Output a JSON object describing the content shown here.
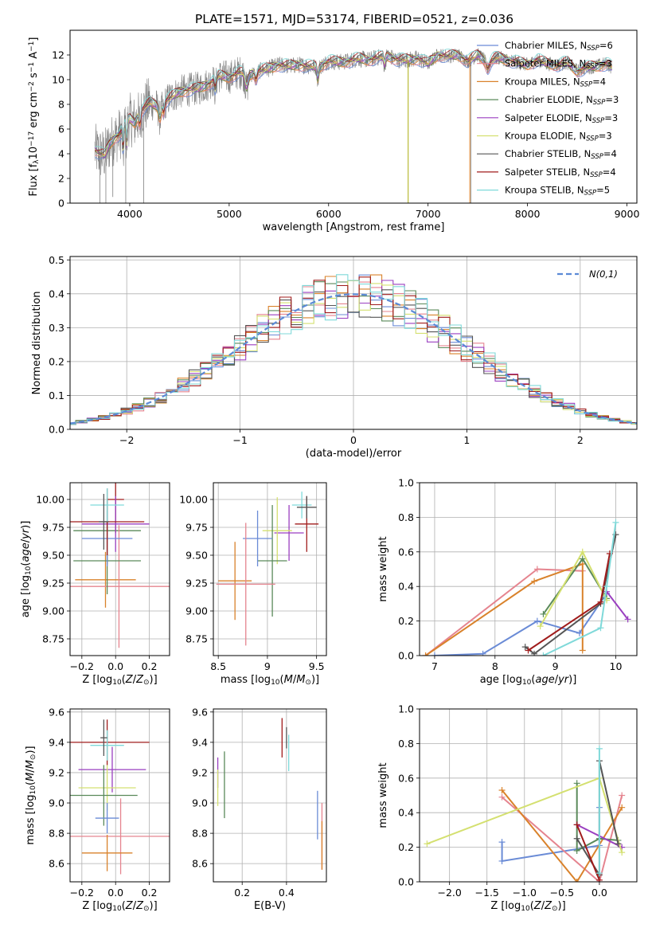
{
  "title": "PLATE=1571, MJD=53174, FIBERID=0521, z=0.036",
  "chart_data": [
    {
      "id": "spectrum",
      "type": "line",
      "xlabel": "wavelength [Angstrom, rest frame]",
      "ylabel": "Flux [f_λ 10^-17 erg cm^-2 s^-1 A^-1]",
      "xlim": [
        3400,
        9100
      ],
      "ylim": [
        0,
        14
      ],
      "xticks": [
        4000,
        5000,
        6000,
        7000,
        8000,
        9000
      ],
      "yticks": [
        0,
        2,
        4,
        6,
        8,
        10,
        12
      ],
      "grid": false,
      "legend_position": "right",
      "observed_color": "#808080",
      "continuum": [
        [
          3650,
          4.3
        ],
        [
          3700,
          4.0
        ],
        [
          3750,
          3.9
        ],
        [
          3800,
          4.8
        ],
        [
          3850,
          5.3
        ],
        [
          3900,
          5.6
        ],
        [
          3950,
          6.3
        ],
        [
          4000,
          6.8
        ],
        [
          4050,
          6.5
        ],
        [
          4100,
          7.3
        ],
        [
          4150,
          7.8
        ],
        [
          4200,
          8.1
        ],
        [
          4300,
          7.8
        ],
        [
          4400,
          8.5
        ],
        [
          4500,
          9.0
        ],
        [
          4600,
          9.2
        ],
        [
          4700,
          9.3
        ],
        [
          4800,
          9.7
        ],
        [
          4900,
          10.3
        ],
        [
          5000,
          10.2
        ],
        [
          5100,
          10.6
        ],
        [
          5200,
          10.4
        ],
        [
          5300,
          10.7
        ],
        [
          5400,
          10.9
        ],
        [
          5500,
          11.2
        ],
        [
          5600,
          11.1
        ],
        [
          5700,
          11.2
        ],
        [
          5800,
          11.1
        ],
        [
          5900,
          11.0
        ],
        [
          6000,
          11.5
        ],
        [
          6100,
          11.4
        ],
        [
          6200,
          11.5
        ],
        [
          6300,
          11.7
        ],
        [
          6400,
          11.6
        ],
        [
          6500,
          11.8
        ],
        [
          6600,
          11.9
        ],
        [
          6700,
          11.6
        ],
        [
          6800,
          11.6
        ],
        [
          6900,
          11.7
        ],
        [
          7000,
          11.3
        ],
        [
          7100,
          12.0
        ],
        [
          7200,
          11.9
        ],
        [
          7300,
          12.0
        ],
        [
          7400,
          11.5
        ],
        [
          7500,
          12.0
        ],
        [
          7600,
          11.5
        ],
        [
          7700,
          11.8
        ],
        [
          7800,
          11.6
        ],
        [
          7900,
          11.4
        ],
        [
          8000,
          11.2
        ],
        [
          8100,
          11.6
        ],
        [
          8200,
          11.3
        ],
        [
          8300,
          11.2
        ],
        [
          8400,
          11.4
        ],
        [
          8500,
          10.7
        ],
        [
          8600,
          11.0
        ],
        [
          8700,
          11.1
        ],
        [
          8800,
          11.3
        ],
        [
          8850,
          11.0
        ]
      ],
      "models": [
        {
          "name": "Chabrier MILES, N_SSP=6",
          "label_main": "Chabrier MILES, N",
          "label_sub": "SSP",
          "label_val": "=6",
          "color": "#6a8bd6"
        },
        {
          "name": "Salpeter MILES, N_SSP=3",
          "label_main": "Salpeter MILES, N",
          "label_sub": "SSP",
          "label_val": "=3",
          "color": "#e5848f"
        },
        {
          "name": "Kroupa MILES, N_SSP=4",
          "label_main": "Kroupa MILES, N",
          "label_sub": "SSP",
          "label_val": "=4",
          "color": "#d9822b"
        },
        {
          "name": "Chabrier ELODIE, N_SSP=3",
          "label_main": "Chabrier ELODIE, N",
          "label_sub": "SSP",
          "label_val": "=3",
          "color": "#5a8a5a"
        },
        {
          "name": "Salpeter ELODIE, N_SSP=3",
          "label_main": "Salpeter ELODIE, N",
          "label_sub": "SSP",
          "label_val": "=3",
          "color": "#9a3fc0"
        },
        {
          "name": "Kroupa ELODIE, N_SSP=3",
          "label_main": "Kroupa ELODIE, N",
          "label_sub": "SSP",
          "label_val": "=3",
          "color": "#d4e070"
        },
        {
          "name": "Chabrier STELIB, N_SSP=4",
          "label_main": "Chabrier STELIB, N",
          "label_sub": "SSP",
          "label_val": "=4",
          "color": "#555555"
        },
        {
          "name": "Salpeter STELIB, N_SSP=4",
          "label_main": "Salpeter STELIB, N",
          "label_sub": "SSP",
          "label_val": "=4",
          "color": "#a01c1c"
        },
        {
          "name": "Kroupa STELIB, N_SSP=5",
          "label_main": "Kroupa STELIB, N",
          "label_sub": "SSP",
          "label_val": "=5",
          "color": "#7fd9d9"
        }
      ]
    },
    {
      "id": "residuals",
      "type": "histogram",
      "xlabel": "(data-model)/error",
      "ylabel": "Normed distribution",
      "xlim": [
        -2.5,
        2.5
      ],
      "ylim": [
        0,
        0.51
      ],
      "xticks": [
        -2,
        -1,
        0,
        1,
        2
      ],
      "yticks": [
        0.0,
        0.1,
        0.2,
        0.3,
        0.4,
        0.5
      ],
      "grid": true,
      "legend_position": "top-right",
      "reference": {
        "name": "N(0,1)",
        "color": "#5b8ad6"
      }
    },
    {
      "id": "age_vs_Z",
      "type": "scatter",
      "xlabel": "Z [log10(Z/Z⊙)]",
      "ylabel": "age  [log10(age/yr)]",
      "xlim": [
        -0.27,
        0.32
      ],
      "ylim": [
        8.6,
        10.15
      ],
      "xticks": [
        -0.2,
        0.0,
        0.2
      ],
      "xtick_labels": [
        "−0.2",
        "0.0",
        "0.2"
      ],
      "yticks": [
        8.75,
        9.0,
        9.25,
        9.5,
        9.75,
        10.0
      ],
      "grid": true,
      "points": [
        {
          "x": -0.05,
          "y": 9.72,
          "xerr": 0.2,
          "yerr": 0.3,
          "model": 3
        },
        {
          "x": 0.0,
          "y": 10.0,
          "xerr": 0.05,
          "yerr": 0.3,
          "model": 7
        },
        {
          "x": -0.06,
          "y": 9.28,
          "xerr": 0.18,
          "yerr": 0.25,
          "model": 2
        },
        {
          "x": 0.02,
          "y": 9.22,
          "xerr": 0.3,
          "yerr": 0.55,
          "model": 1
        },
        {
          "x": -0.05,
          "y": 9.45,
          "xerr": 0.2,
          "yerr": 0.3,
          "model": 3
        },
        {
          "x": 0.0,
          "y": 9.78,
          "xerr": 0.2,
          "yerr": 0.25,
          "model": 4
        },
        {
          "x": -0.05,
          "y": 9.65,
          "xerr": 0.15,
          "yerr": 0.25,
          "model": 0
        },
        {
          "x": -0.05,
          "y": 9.8,
          "xerr": 0.22,
          "yerr": 0.3,
          "model": 7
        },
        {
          "x": -0.05,
          "y": 9.95,
          "xerr": 0.1,
          "yerr": 0.15,
          "model": 8
        },
        {
          "x": -0.07,
          "y": 9.8,
          "xerr": 0.03,
          "yerr": 0.25,
          "model": 6
        }
      ]
    },
    {
      "id": "age_vs_mass",
      "type": "scatter",
      "xlabel": "mass [log10(M/M⊙)]",
      "xlim": [
        8.45,
        9.6
      ],
      "ylim": [
        8.6,
        10.15
      ],
      "xticks": [
        8.5,
        9.0,
        9.5
      ],
      "yticks": [
        8.75,
        9.0,
        9.25,
        9.5,
        9.75,
        10.0
      ],
      "grid": true,
      "points": [
        {
          "x": 9.35,
          "y": 9.95,
          "xerr": 0.1,
          "yerr": 0.12,
          "model": 8
        },
        {
          "x": 9.4,
          "y": 9.78,
          "xerr": 0.12,
          "yerr": 0.25,
          "model": 7
        },
        {
          "x": 9.4,
          "y": 9.93,
          "xerr": 0.1,
          "yerr": 0.1,
          "model": 6
        },
        {
          "x": 9.22,
          "y": 9.7,
          "xerr": 0.15,
          "yerr": 0.25,
          "model": 4
        },
        {
          "x": 9.1,
          "y": 9.72,
          "xerr": 0.15,
          "yerr": 0.3,
          "model": 5
        },
        {
          "x": 9.05,
          "y": 9.45,
          "xerr": 0.15,
          "yerr": 0.5,
          "model": 3
        },
        {
          "x": 8.9,
          "y": 9.65,
          "xerr": 0.15,
          "yerr": 0.25,
          "model": 0
        },
        {
          "x": 8.67,
          "y": 9.27,
          "xerr": 0.17,
          "yerr": 0.35,
          "model": 2
        },
        {
          "x": 8.78,
          "y": 9.24,
          "xerr": 0.3,
          "yerr": 0.55,
          "model": 1
        }
      ]
    },
    {
      "id": "weight_vs_age",
      "type": "line",
      "xlabel": "age  [log10(age/yr)]",
      "ylabel": "mass weight",
      "xlim": [
        6.75,
        10.35
      ],
      "ylim": [
        0,
        1.0
      ],
      "xticks": [
        7,
        8,
        9,
        10
      ],
      "yticks": [
        0.0,
        0.2,
        0.4,
        0.6,
        0.8,
        1.0
      ],
      "grid": true,
      "series": [
        {
          "model": 0,
          "x": [
            7.0,
            7.8,
            8.7,
            9.4,
            9.85
          ],
          "y": [
            0.0,
            0.01,
            0.2,
            0.13,
            0.36
          ]
        },
        {
          "model": 1,
          "x": [
            6.85,
            8.7,
            9.45
          ],
          "y": [
            0.0,
            0.5,
            0.49
          ]
        },
        {
          "model": 2,
          "x": [
            6.85,
            8.65,
            9.45,
            9.45
          ],
          "y": [
            0.0,
            0.43,
            0.53,
            0.03
          ]
        },
        {
          "model": 3,
          "x": [
            8.8,
            9.45,
            9.85
          ],
          "y": [
            0.24,
            0.56,
            0.33
          ]
        },
        {
          "model": 4,
          "x": [
            9.85,
            10.2
          ],
          "y": [
            0.37,
            0.21
          ]
        },
        {
          "model": 5,
          "x": [
            8.75,
            9.45,
            9.85
          ],
          "y": [
            0.17,
            0.6,
            0.32
          ]
        },
        {
          "model": 6,
          "x": [
            8.5,
            8.65,
            9.75,
            10.0
          ],
          "y": [
            0.05,
            0.01,
            0.3,
            0.7
          ]
        },
        {
          "model": 7,
          "x": [
            8.55,
            9.75,
            9.9
          ],
          "y": [
            0.03,
            0.31,
            0.59
          ]
        },
        {
          "model": 8,
          "x": [
            8.8,
            9.75,
            9.85,
            10.0
          ],
          "y": [
            0.0,
            0.16,
            0.4,
            0.77
          ]
        }
      ]
    },
    {
      "id": "mass_vs_Z",
      "type": "scatter",
      "xlabel": "Z [log10(Z/Z⊙)]",
      "ylabel": "mass [log10(M/M⊙)]",
      "xlim": [
        -0.27,
        0.32
      ],
      "ylim": [
        8.48,
        9.62
      ],
      "xticks": [
        -0.2,
        0.0,
        0.2
      ],
      "xtick_labels": [
        "−0.2",
        "0.0",
        "0.2"
      ],
      "yticks": [
        8.6,
        8.8,
        9.0,
        9.2,
        9.4,
        9.6
      ],
      "grid": true,
      "points": [
        {
          "x": -0.05,
          "y": 9.4,
          "xerr": 0.25,
          "yerr": 0.15,
          "model": 7
        },
        {
          "x": -0.05,
          "y": 9.38,
          "xerr": 0.1,
          "yerr": 0.1,
          "model": 8
        },
        {
          "x": -0.02,
          "y": 9.22,
          "xerr": 0.2,
          "yerr": 0.15,
          "model": 4
        },
        {
          "x": -0.05,
          "y": 9.1,
          "xerr": 0.17,
          "yerr": 0.15,
          "model": 5
        },
        {
          "x": -0.07,
          "y": 9.05,
          "xerr": 0.2,
          "yerr": 0.2,
          "model": 3
        },
        {
          "x": -0.05,
          "y": 8.9,
          "xerr": 0.07,
          "yerr": 0.1,
          "model": 0
        },
        {
          "x": 0.03,
          "y": 8.78,
          "xerr": 0.3,
          "yerr": 0.25,
          "model": 1
        },
        {
          "x": -0.05,
          "y": 8.67,
          "xerr": 0.15,
          "yerr": 0.12,
          "model": 2
        },
        {
          "x": -0.07,
          "y": 9.43,
          "xerr": 0.02,
          "yerr": 0.12,
          "model": 6
        }
      ]
    },
    {
      "id": "mass_vs_ebv",
      "type": "scatter",
      "xlabel": "E(B-V)",
      "xlim": [
        0.07,
        0.58
      ],
      "ylim": [
        8.48,
        9.62
      ],
      "xticks": [
        0.2,
        0.4
      ],
      "yticks": [
        8.6,
        8.8,
        9.0,
        9.2,
        9.4,
        9.6
      ],
      "grid": true,
      "points": [
        {
          "x": 0.09,
          "y": 9.2,
          "yerr": 0.1,
          "model": 4
        },
        {
          "x": 0.09,
          "y": 9.1,
          "yerr": 0.12,
          "model": 5
        },
        {
          "x": 0.12,
          "y": 9.12,
          "yerr": 0.22,
          "model": 3
        },
        {
          "x": 0.38,
          "y": 9.43,
          "yerr": 0.13,
          "model": 7
        },
        {
          "x": 0.4,
          "y": 9.43,
          "yerr": 0.07,
          "model": 6
        },
        {
          "x": 0.41,
          "y": 9.33,
          "yerr": 0.12,
          "model": 8
        },
        {
          "x": 0.54,
          "y": 8.92,
          "yerr": 0.16,
          "model": 0
        },
        {
          "x": 0.56,
          "y": 8.78,
          "yerr": 0.22,
          "model": 1
        },
        {
          "x": 0.56,
          "y": 8.72,
          "yerr": 0.16,
          "model": 2
        }
      ]
    },
    {
      "id": "weight_vs_Z",
      "type": "line",
      "xlabel": "Z [log10(Z/Z⊙)]",
      "ylabel": "mass weight",
      "xlim": [
        -2.4,
        0.5
      ],
      "ylim": [
        0,
        1.0
      ],
      "xticks": [
        -2.0,
        -1.5,
        -1.0,
        -0.5,
        0.0
      ],
      "xtick_labels": [
        "−2.0",
        "−1.5",
        "−1.0",
        "−0.5",
        "0.0"
      ],
      "yticks": [
        0.0,
        0.2,
        0.4,
        0.6,
        0.8,
        1.0
      ],
      "grid": true,
      "series": [
        {
          "model": 0,
          "x": [
            -1.3,
            -1.3,
            0.0,
            0.0
          ],
          "y": [
            0.23,
            0.12,
            0.21,
            0.43
          ]
        },
        {
          "model": 1,
          "x": [
            -1.3,
            0.0,
            0.3
          ],
          "y": [
            0.49,
            0.0,
            0.5
          ]
        },
        {
          "model": 2,
          "x": [
            -1.3,
            -0.3,
            0.3
          ],
          "y": [
            0.53,
            0.0,
            0.43
          ]
        },
        {
          "model": 3,
          "x": [
            -0.3,
            -0.3,
            0.0,
            0.25
          ],
          "y": [
            0.57,
            0.18,
            0.25,
            0.24
          ]
        },
        {
          "model": 4,
          "x": [
            -0.3,
            0.3
          ],
          "y": [
            0.33,
            0.2
          ]
        },
        {
          "model": 5,
          "x": [
            -2.3,
            0.0,
            0.3
          ],
          "y": [
            0.22,
            0.6,
            0.17
          ]
        },
        {
          "model": 6,
          "x": [
            -0.3,
            0.0,
            0.0,
            0.25
          ],
          "y": [
            0.25,
            0.04,
            0.7,
            0.22
          ]
        },
        {
          "model": 7,
          "x": [
            -0.3,
            0.0
          ],
          "y": [
            0.33,
            0.01
          ]
        },
        {
          "model": 8,
          "x": [
            0.0,
            0.0
          ],
          "y": [
            0.77,
            0.05
          ]
        }
      ]
    }
  ]
}
